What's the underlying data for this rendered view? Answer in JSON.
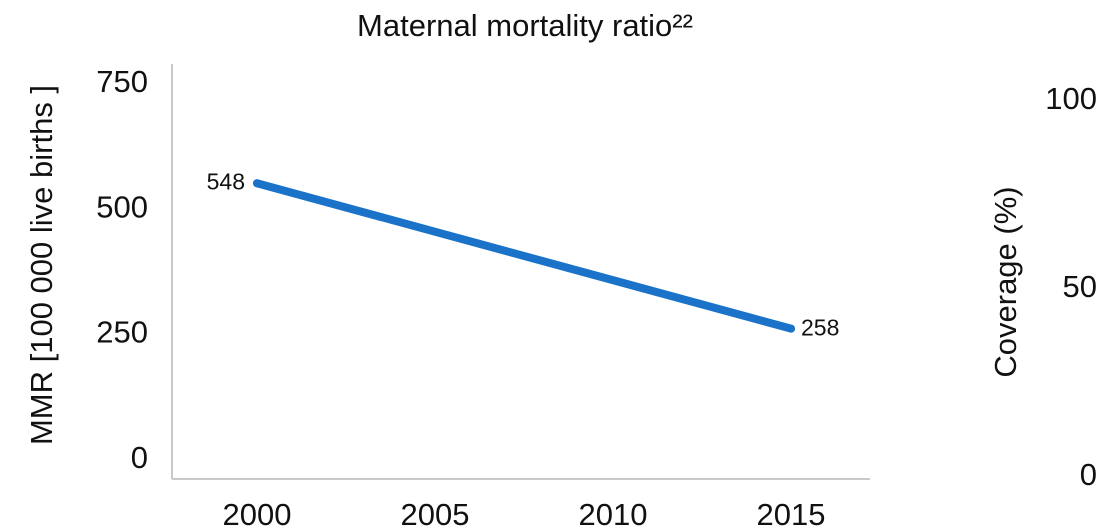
{
  "chart_data": {
    "type": "line",
    "title": "Maternal mortality ratio²²",
    "ylabel": "MMR [100 000 live births ]",
    "y2label": "Coverage  (%)",
    "x": [
      2000,
      2015
    ],
    "x_ticks": [
      "2000",
      "2005",
      "2010",
      "2015"
    ],
    "ylim": [
      0,
      750
    ],
    "y_ticks": [
      "0",
      "250",
      "500",
      "750"
    ],
    "y2lim": [
      0,
      100
    ],
    "y2_ticks": [
      "0",
      "50",
      "100"
    ],
    "series": [
      {
        "name": "",
        "x": [
          2000,
          2015
        ],
        "values": [
          548,
          258
        ],
        "labels": [
          "548",
          "258"
        ]
      }
    ],
    "grid": false,
    "legend": "none",
    "colors": {
      "line": "#1b73c9",
      "axis": "#c9c9c9",
      "text": "#111111"
    }
  }
}
